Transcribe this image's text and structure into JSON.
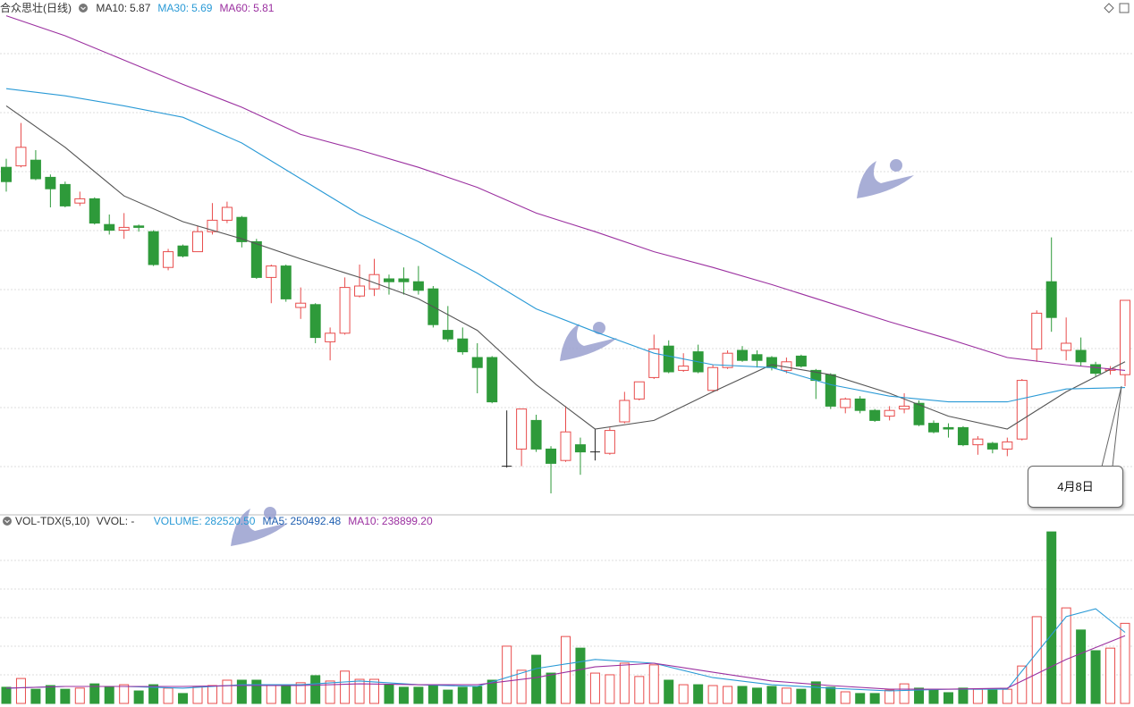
{
  "chart_data": [
    {
      "type": "candlestick",
      "title": "合众思壮(日线)",
      "indicators": [
        {
          "label": "MA10:",
          "value": 5.87,
          "color": "#333333"
        },
        {
          "label": "MA30:",
          "value": 5.69,
          "color": "#2a9ad6"
        },
        {
          "label": "MA60:",
          "value": 5.81,
          "color": "#9b30a0"
        }
      ],
      "ylim": [
        4.8,
        8.4
      ],
      "up_color": "#e84c4c",
      "down_color": "#2e9a3a",
      "flat_color": "#222222",
      "ohlc": [
        [
          7.23,
          7.29,
          7.06,
          7.13
        ],
        [
          7.24,
          7.54,
          7.23,
          7.37
        ],
        [
          7.28,
          7.35,
          7.14,
          7.15
        ],
        [
          7.16,
          7.18,
          6.95,
          7.08
        ],
        [
          7.11,
          7.13,
          6.95,
          6.96
        ],
        [
          6.98,
          7.06,
          6.96,
          7.01
        ],
        [
          7.01,
          7.02,
          6.83,
          6.84
        ],
        [
          6.83,
          6.9,
          6.76,
          6.79
        ],
        [
          6.79,
          6.91,
          6.73,
          6.81
        ],
        [
          6.82,
          6.83,
          6.78,
          6.81
        ],
        [
          6.78,
          6.79,
          6.54,
          6.55
        ],
        [
          6.53,
          6.66,
          6.51,
          6.64
        ],
        [
          6.68,
          6.69,
          6.6,
          6.61
        ],
        [
          6.64,
          6.82,
          6.64,
          6.78
        ],
        [
          6.78,
          6.98,
          6.76,
          6.86
        ],
        [
          6.86,
          6.99,
          6.84,
          6.95
        ],
        [
          6.88,
          6.89,
          6.67,
          6.71
        ],
        [
          6.71,
          6.73,
          6.45,
          6.46
        ],
        [
          6.46,
          6.55,
          6.28,
          6.54
        ],
        [
          6.54,
          6.55,
          6.29,
          6.31
        ],
        [
          6.25,
          6.39,
          6.17,
          6.28
        ],
        [
          6.27,
          6.28,
          6.0,
          6.04
        ],
        [
          6.01,
          6.11,
          5.88,
          6.07
        ],
        [
          6.07,
          6.46,
          6.06,
          6.39
        ],
        [
          6.33,
          6.55,
          6.32,
          6.4
        ],
        [
          6.38,
          6.59,
          6.33,
          6.48
        ],
        [
          6.45,
          6.48,
          6.34,
          6.43
        ],
        [
          6.45,
          6.53,
          6.34,
          6.43
        ],
        [
          6.43,
          6.54,
          6.34,
          6.37
        ],
        [
          6.38,
          6.4,
          6.11,
          6.13
        ],
        [
          6.09,
          6.26,
          6.01,
          6.03
        ],
        [
          6.03,
          6.11,
          5.92,
          5.94
        ],
        [
          5.9,
          6.0,
          5.65,
          5.83
        ],
        [
          5.9,
          5.91,
          5.58,
          5.59
        ],
        [
          5.14,
          5.53,
          5.13,
          5.14
        ],
        [
          5.26,
          5.54,
          5.14,
          5.54
        ],
        [
          5.46,
          5.5,
          5.24,
          5.26
        ],
        [
          5.26,
          5.28,
          4.95,
          5.16
        ],
        [
          5.18,
          5.56,
          5.17,
          5.38
        ],
        [
          5.29,
          5.34,
          5.08,
          5.24
        ],
        [
          5.24,
          5.4,
          5.18,
          5.24
        ],
        [
          5.23,
          5.41,
          5.22,
          5.39
        ],
        [
          5.45,
          5.66,
          5.44,
          5.6
        ],
        [
          5.61,
          5.73,
          5.6,
          5.73
        ],
        [
          5.76,
          6.06,
          5.75,
          5.96
        ],
        [
          5.98,
          6.02,
          5.79,
          5.8
        ],
        [
          5.81,
          5.93,
          5.8,
          5.84
        ],
        [
          5.94,
          5.99,
          5.79,
          5.8
        ],
        [
          5.67,
          5.85,
          5.66,
          5.83
        ],
        [
          5.83,
          5.95,
          5.82,
          5.93
        ],
        [
          5.95,
          5.98,
          5.87,
          5.88
        ],
        [
          5.92,
          5.95,
          5.83,
          5.88
        ],
        [
          5.9,
          5.91,
          5.81,
          5.83
        ],
        [
          5.81,
          5.9,
          5.79,
          5.87
        ],
        [
          5.91,
          5.92,
          5.83,
          5.84
        ],
        [
          5.81,
          5.82,
          5.61,
          5.74
        ],
        [
          5.78,
          5.79,
          5.54,
          5.56
        ],
        [
          5.55,
          5.62,
          5.51,
          5.61
        ],
        [
          5.61,
          5.63,
          5.51,
          5.53
        ],
        [
          5.53,
          5.54,
          5.45,
          5.46
        ],
        [
          5.49,
          5.56,
          5.46,
          5.53
        ],
        [
          5.54,
          5.65,
          5.51,
          5.56
        ],
        [
          5.58,
          5.6,
          5.42,
          5.43
        ],
        [
          5.44,
          5.46,
          5.37,
          5.38
        ],
        [
          5.41,
          5.44,
          5.34,
          5.4
        ],
        [
          5.41,
          5.42,
          5.28,
          5.29
        ],
        [
          5.29,
          5.35,
          5.22,
          5.33
        ],
        [
          5.3,
          5.31,
          5.23,
          5.26
        ],
        [
          5.26,
          5.34,
          5.21,
          5.31
        ],
        [
          5.33,
          5.75,
          5.32,
          5.74
        ],
        [
          5.96,
          6.23,
          5.87,
          6.21
        ],
        [
          6.43,
          6.74,
          6.08,
          6.18
        ],
        [
          5.95,
          6.18,
          5.88,
          6.0
        ],
        [
          5.95,
          6.04,
          5.84,
          5.87
        ],
        [
          5.85,
          5.87,
          5.77,
          5.79
        ],
        [
          5.81,
          5.84,
          5.78,
          5.82
        ],
        [
          5.78,
          6.3,
          5.7,
          6.3
        ]
      ],
      "lines": [
        {
          "name": "MA10",
          "color": "#555555",
          "x": [
            0,
            4,
            8,
            12,
            16,
            20,
            24,
            28,
            32,
            36,
            40,
            44,
            48,
            52,
            56,
            60,
            64,
            68,
            72,
            76
          ],
          "values": [
            7.66,
            7.37,
            7.03,
            6.85,
            6.73,
            6.59,
            6.46,
            6.31,
            6.09,
            5.71,
            5.4,
            5.46,
            5.66,
            5.85,
            5.78,
            5.65,
            5.49,
            5.4,
            5.66,
            5.87
          ]
        },
        {
          "name": "MA30",
          "color": "#2a9ad6",
          "x": [
            0,
            4,
            8,
            12,
            16,
            20,
            24,
            28,
            32,
            36,
            40,
            44,
            48,
            52,
            56,
            60,
            64,
            68,
            72,
            76
          ],
          "values": [
            7.78,
            7.73,
            7.66,
            7.58,
            7.4,
            7.15,
            6.9,
            6.71,
            6.49,
            6.24,
            6.08,
            5.93,
            5.85,
            5.83,
            5.71,
            5.63,
            5.59,
            5.59,
            5.68,
            5.69
          ]
        },
        {
          "name": "MA60",
          "color": "#9b30a0",
          "x": [
            0,
            4,
            8,
            12,
            16,
            20,
            24,
            28,
            32,
            36,
            40,
            44,
            48,
            52,
            56,
            60,
            64,
            68,
            72,
            76
          ],
          "values": [
            8.29,
            8.15,
            7.98,
            7.81,
            7.65,
            7.46,
            7.35,
            7.23,
            7.09,
            6.91,
            6.78,
            6.64,
            6.53,
            6.41,
            6.28,
            6.15,
            6.03,
            5.9,
            5.85,
            5.81
          ]
        }
      ],
      "annotation": {
        "text": "4月8日",
        "index": 76
      }
    },
    {
      "type": "bar",
      "title": "VOL-TDX(5,10)",
      "subtitle": "VVOL: -",
      "indicators": [
        {
          "label": "VOLUME:",
          "value": 282520.5,
          "value_label": "282520.50",
          "color": "#2a9ad6"
        },
        {
          "label": "MA5:",
          "value": 250492.48,
          "value_label": "250492.48",
          "color": "#1f5fb0"
        },
        {
          "label": "MA10:",
          "value": 238899.2,
          "value_label": "238899.20",
          "color": "#9b30a0"
        }
      ],
      "ylim": [
        0,
        640000
      ],
      "values": [
        57000,
        88000,
        50000,
        63000,
        50000,
        54000,
        69000,
        60000,
        66000,
        44000,
        66000,
        54000,
        35000,
        60000,
        63000,
        82000,
        82000,
        82000,
        63000,
        66000,
        73000,
        98000,
        79000,
        114000,
        85000,
        85000,
        66000,
        57000,
        57000,
        63000,
        47000,
        57000,
        60000,
        82000,
        202000,
        117000,
        170000,
        107000,
        236000,
        195000,
        107000,
        101000,
        142000,
        95000,
        136000,
        82000,
        66000,
        66000,
        63000,
        60000,
        60000,
        54000,
        60000,
        54000,
        50000,
        76000,
        57000,
        41000,
        35000,
        35000,
        47000,
        69000,
        54000,
        50000,
        38000,
        54000,
        50000,
        47000,
        50000,
        132000,
        306000,
        605000,
        337000,
        259000,
        186000,
        195000,
        282520.5
      ],
      "lines": [
        {
          "name": "MA5",
          "color": "#2a9ad6",
          "x": [
            0,
            4,
            8,
            12,
            16,
            20,
            24,
            28,
            32,
            36,
            40,
            44,
            48,
            52,
            56,
            60,
            64,
            68,
            72,
            74,
            76
          ],
          "values": [
            54000,
            60000,
            60000,
            54000,
            66000,
            66000,
            79000,
            66000,
            60000,
            123000,
            155000,
            142000,
            91000,
            66000,
            54000,
            44000,
            50000,
            50000,
            306000,
            334000,
            250492.48
          ]
        },
        {
          "name": "MA10",
          "color": "#9b30a0",
          "x": [
            0,
            4,
            8,
            12,
            16,
            20,
            24,
            28,
            32,
            36,
            40,
            44,
            48,
            52,
            56,
            60,
            64,
            68,
            72,
            76
          ],
          "values": [
            54000,
            60000,
            60000,
            60000,
            63000,
            63000,
            69000,
            66000,
            66000,
            91000,
            129000,
            142000,
            110000,
            79000,
            63000,
            50000,
            50000,
            54000,
            155000,
            238899.2
          ]
        }
      ]
    }
  ]
}
